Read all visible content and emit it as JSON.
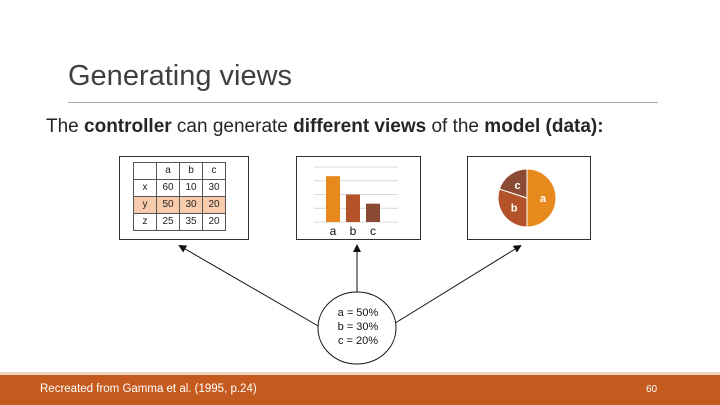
{
  "slide": {
    "title": "Generating views",
    "subtitle": {
      "part1": "The ",
      "bold1": "controller",
      "part2": " can generate ",
      "bold2": "different views",
      "part3": " of the ",
      "bold3": "model (data):"
    },
    "footer": "Recreated from Gamma et al. (1995, p.24)",
    "page_number": "60"
  },
  "table_view": {
    "columns": [
      "a",
      "b",
      "c"
    ],
    "rows": [
      {
        "label": "x",
        "values": [
          "60",
          "10",
          "30"
        ]
      },
      {
        "label": "y",
        "values": [
          "50",
          "30",
          "20"
        ]
      },
      {
        "label": "z",
        "values": [
          "25",
          "35",
          "20"
        ]
      }
    ],
    "highlight_row": "y"
  },
  "model": {
    "lines": [
      "a = 50%",
      "b = 30%",
      "c = 20%"
    ]
  },
  "colors": {
    "orange": "#e8891d",
    "rust": "#b4532a",
    "brown": "#8a4a33",
    "highlight": "#f8cbad",
    "footer": "#c55a1f"
  },
  "chart_data": [
    {
      "type": "bar",
      "categories": [
        "a",
        "b",
        "c"
      ],
      "values": [
        50,
        30,
        20
      ],
      "ylim": [
        0,
        60
      ],
      "grid": true
    },
    {
      "type": "pie",
      "categories": [
        "a",
        "b",
        "c"
      ],
      "values": [
        50,
        30,
        20
      ]
    }
  ]
}
